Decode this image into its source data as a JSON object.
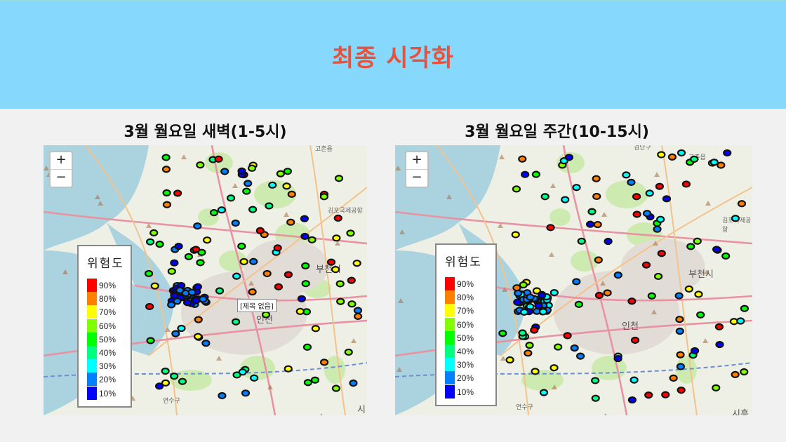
{
  "header": {
    "title": "최종 시각화",
    "bg": "#86d8fd",
    "title_color": "#e8513a"
  },
  "maps": [
    {
      "title": "3월 월요일 새벽(1-5시)",
      "zoom_in": "+",
      "zoom_out": "−",
      "legend": {
        "title": "위험도",
        "items": [
          {
            "label": "90%",
            "color": "#ff0000"
          },
          {
            "label": "80%",
            "color": "#ff8000"
          },
          {
            "label": "70%",
            "color": "#ffff00"
          },
          {
            "label": "60%",
            "color": "#80ff00"
          },
          {
            "label": "50%",
            "color": "#00ff00"
          },
          {
            "label": "40%",
            "color": "#00ff80"
          },
          {
            "label": "30%",
            "color": "#00ffff"
          },
          {
            "label": "20%",
            "color": "#0080ff"
          },
          {
            "label": "10%",
            "color": "#0000ff"
          }
        ]
      },
      "tooltip": "[제목 없음]",
      "places": [
        "부천시",
        "인천",
        "고촌읍",
        "김포국제공항",
        "연수구",
        "시흥"
      ]
    },
    {
      "title": "3월 월요일 주간(10-15시)",
      "zoom_in": "+",
      "zoom_out": "−",
      "legend": {
        "title": "위험도",
        "items": [
          {
            "label": "90%",
            "color": "#ff0000"
          },
          {
            "label": "80%",
            "color": "#ff8000"
          },
          {
            "label": "70%",
            "color": "#ffff00"
          },
          {
            "label": "60%",
            "color": "#80ff00"
          },
          {
            "label": "50%",
            "color": "#00ff00"
          },
          {
            "label": "40%",
            "color": "#00ff80"
          },
          {
            "label": "30%",
            "color": "#00ffff"
          },
          {
            "label": "20%",
            "color": "#0080ff"
          },
          {
            "label": "10%",
            "color": "#0000ff"
          }
        ]
      },
      "places": [
        "부천시",
        "인천",
        "고촌읍",
        "김포국제공항",
        "연수구",
        "시흥",
        "검단구"
      ]
    }
  ]
}
